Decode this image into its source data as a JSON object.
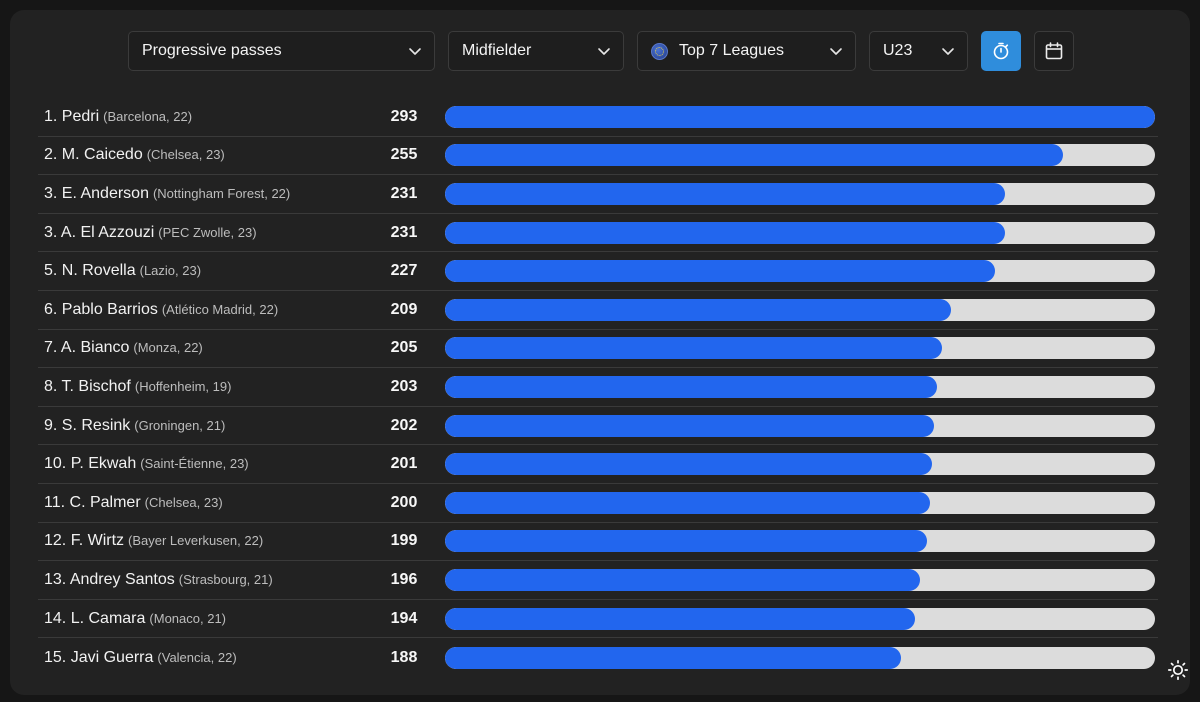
{
  "toolbar": {
    "metric": "Progressive passes",
    "position": "Midfielder",
    "league": "Top 7 Leagues",
    "age": "U23",
    "icons": {
      "chevron": "chevron-down-icon",
      "timer": "stopwatch-icon",
      "calendar": "calendar-icon",
      "globe": "globe-icon",
      "theme": "sun-icon"
    }
  },
  "colors": {
    "bar_fill": "#2266ee",
    "bar_track": "#dcdcdc",
    "active_button": "#2f8ddc",
    "panel": "#222222"
  },
  "max_value": 293,
  "players": [
    {
      "rank": "1.",
      "name": "Pedri",
      "meta": "(Barcelona, 22)",
      "value": 293
    },
    {
      "rank": "2.",
      "name": "M. Caicedo",
      "meta": "(Chelsea, 23)",
      "value": 255
    },
    {
      "rank": "3.",
      "name": "E. Anderson",
      "meta": "(Nottingham Forest, 22)",
      "value": 231
    },
    {
      "rank": "3.",
      "name": "A. El Azzouzi",
      "meta": "(PEC Zwolle, 23)",
      "value": 231
    },
    {
      "rank": "5.",
      "name": "N. Rovella",
      "meta": "(Lazio, 23)",
      "value": 227
    },
    {
      "rank": "6.",
      "name": "Pablo Barrios",
      "meta": "(Atlético Madrid, 22)",
      "value": 209
    },
    {
      "rank": "7.",
      "name": "A. Bianco",
      "meta": "(Monza, 22)",
      "value": 205
    },
    {
      "rank": "8.",
      "name": "T. Bischof",
      "meta": "(Hoffenheim, 19)",
      "value": 203
    },
    {
      "rank": "9.",
      "name": "S. Resink",
      "meta": "(Groningen, 21)",
      "value": 202
    },
    {
      "rank": "10.",
      "name": "P. Ekwah",
      "meta": "(Saint-Étienne, 23)",
      "value": 201
    },
    {
      "rank": "11.",
      "name": "C. Palmer",
      "meta": "(Chelsea, 23)",
      "value": 200
    },
    {
      "rank": "12.",
      "name": "F. Wirtz",
      "meta": "(Bayer Leverkusen, 22)",
      "value": 199
    },
    {
      "rank": "13.",
      "name": "Andrey Santos",
      "meta": "(Strasbourg, 21)",
      "value": 196
    },
    {
      "rank": "14.",
      "name": "L. Camara",
      "meta": "(Monaco, 21)",
      "value": 194
    },
    {
      "rank": "15.",
      "name": "Javi Guerra",
      "meta": "(Valencia, 22)",
      "value": 188
    }
  ]
}
